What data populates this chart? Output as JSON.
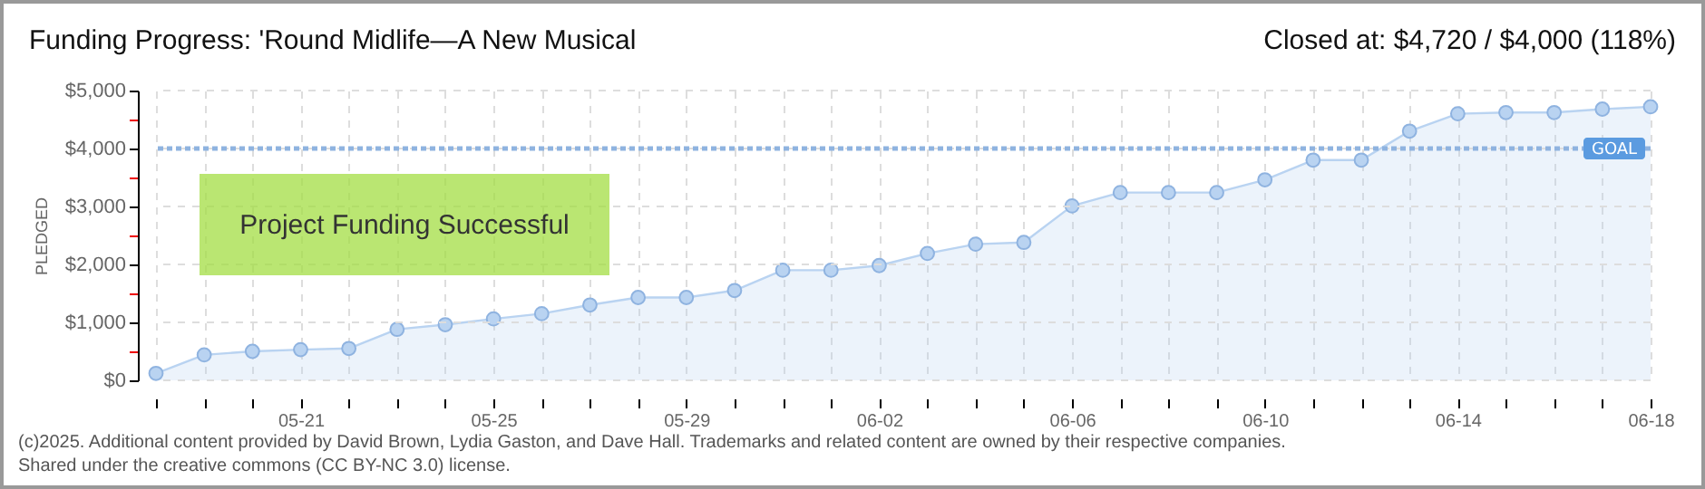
{
  "chart_data": {
    "type": "area",
    "title": "Funding Progress: 'Round Midlife—A New Musical",
    "subtitle": "Closed at: $4,720 / $4,000 (118%)",
    "ylabel": "PLEDGED",
    "annotations": [
      "Project Funding Successful",
      "(c)2025. Additional content provided by David Brown, Lydia Gaston, and Dave Hall. Trademarks and related content are owned by their respective companies.",
      "Shared under the creative commons (CC BY-NC 3.0) license."
    ],
    "x": [
      "--05-18",
      "--05-19",
      "--05-20",
      "--05-21",
      "--05-22",
      "--05-23",
      "--05-24",
      "--05-25",
      "--05-26",
      "--05-27",
      "--05-28",
      "--05-29",
      "--05-30",
      "--05-31",
      "--06-01",
      "--06-02",
      "--06-03",
      "--06-04",
      "--06-05",
      "--06-06",
      "--06-07",
      "--06-08",
      "--06-09",
      "--06-10",
      "--06-11",
      "--06-12",
      "--06-13",
      "--06-14",
      "--06-15",
      "--06-16",
      "--06-17",
      "--06-18"
    ],
    "series": [
      {
        "color": "#b9d3f1",
        "values": [
          120,
          440,
          500,
          530,
          550,
          880,
          960,
          1060,
          1150,
          1300,
          1430,
          1430,
          1550,
          1900,
          1900,
          1980,
          2190,
          2350,
          2380,
          3010,
          3240,
          3240,
          3240,
          3460,
          3800,
          3800,
          4300,
          4600,
          4620,
          4620,
          4680,
          4720
        ]
      }
    ],
    "xlim": [
      "--05-18",
      "--06-18"
    ],
    "xticks": [
      {
        "value": "--05-18",
        "label": null
      },
      {
        "value": "--05-19",
        "label": null
      },
      {
        "value": "--05-20",
        "label": null
      },
      {
        "value": "--05-21",
        "label": "05-21"
      },
      {
        "value": "--05-22",
        "label": null
      },
      {
        "value": "--05-23",
        "label": null
      },
      {
        "value": "--05-24",
        "label": null
      },
      {
        "value": "--05-25",
        "label": "05-25"
      },
      {
        "value": "--05-26",
        "label": null
      },
      {
        "value": "--05-27",
        "label": null
      },
      {
        "value": "--05-28",
        "label": null
      },
      {
        "value": "--05-29",
        "label": "05-29"
      },
      {
        "value": "--05-30",
        "label": null
      },
      {
        "value": "--05-31",
        "label": null
      },
      {
        "value": "--06-01",
        "label": null
      },
      {
        "value": "--06-02",
        "label": "06-02"
      },
      {
        "value": "--06-03",
        "label": null
      },
      {
        "value": "--06-04",
        "label": null
      },
      {
        "value": "--06-05",
        "label": null
      },
      {
        "value": "--06-06",
        "label": "06-06"
      },
      {
        "value": "--06-07",
        "label": null
      },
      {
        "value": "--06-08",
        "label": null
      },
      {
        "value": "--06-09",
        "label": null
      },
      {
        "value": "--06-10",
        "label": "06-10"
      },
      {
        "value": "--06-11",
        "label": null
      },
      {
        "value": "--06-12",
        "label": null
      },
      {
        "value": "--06-13",
        "label": null
      },
      {
        "value": "--06-14",
        "label": "06-14"
      },
      {
        "value": "--06-15",
        "label": null
      },
      {
        "value": "--06-16",
        "label": null
      },
      {
        "value": "--06-17",
        "label": null
      },
      {
        "value": "--06-18",
        "label": "06-18"
      }
    ],
    "ylim": [
      0,
      5000
    ],
    "yticks": [
      {
        "value": 0,
        "label": "$0"
      },
      {
        "value": 500,
        "label": null
      },
      {
        "value": 1000,
        "label": "$1,000"
      },
      {
        "value": 1500,
        "label": null
      },
      {
        "value": 2000,
        "label": "$2,000"
      },
      {
        "value": 2500,
        "label": null
      },
      {
        "value": 3000,
        "label": "$3,000"
      },
      {
        "value": 3500,
        "label": null
      },
      {
        "value": 4000,
        "label": "$4,000"
      },
      {
        "value": 4500,
        "label": null
      },
      {
        "value": 5000,
        "label": "$5,000"
      }
    ],
    "ref_lines": [
      {
        "axis": "y",
        "value": 4000,
        "label": "GOAL",
        "color": "#8fb3e0",
        "line_style": "dotted"
      }
    ],
    "grid": true,
    "marker": "circle"
  }
}
